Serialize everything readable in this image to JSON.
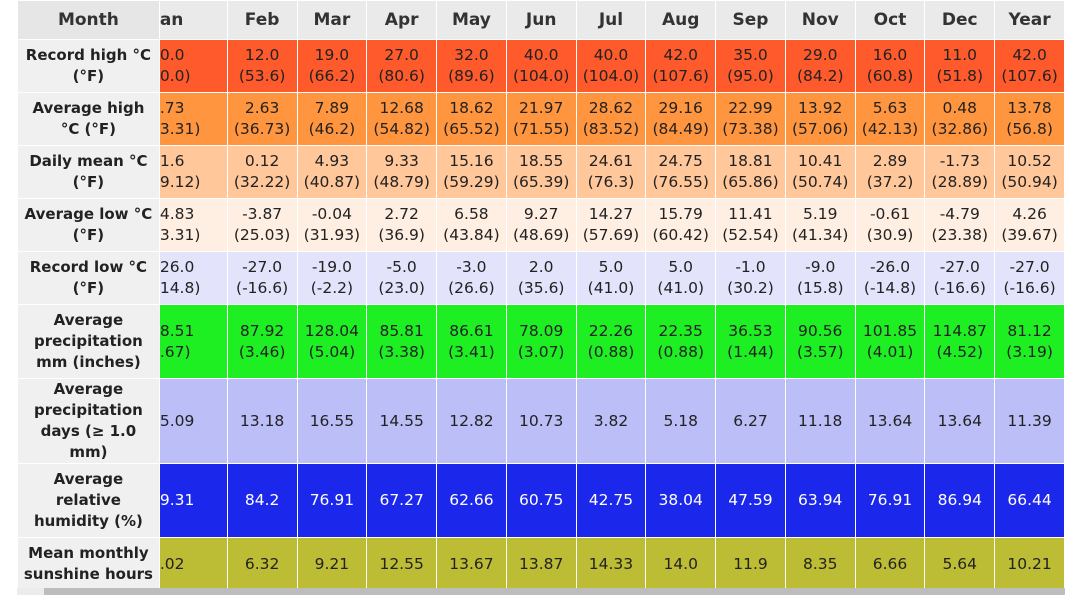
{
  "header": {
    "month_label": "Month",
    "months": [
      "an",
      "Feb",
      "Mar",
      "Apr",
      "May",
      "Jun",
      "Jul",
      "Aug",
      "Sep",
      "Nov",
      "Oct",
      "Dec",
      "Year"
    ]
  },
  "rows": [
    {
      "label": "Record high °C (°F)",
      "bg": "#ff5a2c",
      "fg": "#222",
      "cells": [
        [
          "0.0",
          "0.0)"
        ],
        [
          "12.0",
          "(53.6)"
        ],
        [
          "19.0",
          "(66.2)"
        ],
        [
          "27.0",
          "(80.6)"
        ],
        [
          "32.0",
          "(89.6)"
        ],
        [
          "40.0",
          "(104.0)"
        ],
        [
          "40.0",
          "(104.0)"
        ],
        [
          "42.0",
          "(107.6)"
        ],
        [
          "35.0",
          "(95.0)"
        ],
        [
          "29.0",
          "(84.2)"
        ],
        [
          "16.0",
          "(60.8)"
        ],
        [
          "11.0",
          "(51.8)"
        ],
        [
          "42.0",
          "(107.6)"
        ]
      ]
    },
    {
      "label": "Average high °C (°F)",
      "bg": "#ff963f",
      "fg": "#222",
      "cells": [
        [
          ".73",
          "3.31)"
        ],
        [
          "2.63",
          "(36.73)"
        ],
        [
          "7.89",
          "(46.2)"
        ],
        [
          "12.68",
          "(54.82)"
        ],
        [
          "18.62",
          "(65.52)"
        ],
        [
          "21.97",
          "(71.55)"
        ],
        [
          "28.62",
          "(83.52)"
        ],
        [
          "29.16",
          "(84.49)"
        ],
        [
          "22.99",
          "(73.38)"
        ],
        [
          "13.92",
          "(57.06)"
        ],
        [
          "5.63",
          "(42.13)"
        ],
        [
          "0.48",
          "(32.86)"
        ],
        [
          "13.78",
          "(56.8)"
        ]
      ]
    },
    {
      "label": "Daily mean °C (°F)",
      "bg": "#ffc79a",
      "fg": "#222",
      "cells": [
        [
          "1.6",
          "9.12)"
        ],
        [
          "0.12",
          "(32.22)"
        ],
        [
          "4.93",
          "(40.87)"
        ],
        [
          "9.33",
          "(48.79)"
        ],
        [
          "15.16",
          "(59.29)"
        ],
        [
          "18.55",
          "(65.39)"
        ],
        [
          "24.61",
          "(76.3)"
        ],
        [
          "24.75",
          "(76.55)"
        ],
        [
          "18.81",
          "(65.86)"
        ],
        [
          "10.41",
          "(50.74)"
        ],
        [
          "2.89",
          "(37.2)"
        ],
        [
          "-1.73",
          "(28.89)"
        ],
        [
          "10.52",
          "(50.94)"
        ]
      ]
    },
    {
      "label": "Average low °C (°F)",
      "bg": "#ffeee2",
      "fg": "#222",
      "cells": [
        [
          "4.83",
          "3.31)"
        ],
        [
          "-3.87",
          "(25.03)"
        ],
        [
          "-0.04",
          "(31.93)"
        ],
        [
          "2.72",
          "(36.9)"
        ],
        [
          "6.58",
          "(43.84)"
        ],
        [
          "9.27",
          "(48.69)"
        ],
        [
          "14.27",
          "(57.69)"
        ],
        [
          "15.79",
          "(60.42)"
        ],
        [
          "11.41",
          "(52.54)"
        ],
        [
          "5.19",
          "(41.34)"
        ],
        [
          "-0.61",
          "(30.9)"
        ],
        [
          "-4.79",
          "(23.38)"
        ],
        [
          "4.26",
          "(39.67)"
        ]
      ]
    },
    {
      "label": "Record low °C (°F)",
      "bg": "#e3e3fb",
      "fg": "#222",
      "cells": [
        [
          "26.0",
          "14.8)"
        ],
        [
          "-27.0",
          "(-16.6)"
        ],
        [
          "-19.0",
          "(-2.2)"
        ],
        [
          "-5.0",
          "(23.0)"
        ],
        [
          "-3.0",
          "(26.6)"
        ],
        [
          "2.0",
          "(35.6)"
        ],
        [
          "5.0",
          "(41.0)"
        ],
        [
          "5.0",
          "(41.0)"
        ],
        [
          "-1.0",
          "(30.2)"
        ],
        [
          "-9.0",
          "(15.8)"
        ],
        [
          "-26.0",
          "(-14.8)"
        ],
        [
          "-27.0",
          "(-16.6)"
        ],
        [
          "-27.0",
          "(-16.6)"
        ]
      ]
    },
    {
      "label": "Average precipitation mm (inches)",
      "bg": "#1eef23",
      "fg": "#222",
      "cells": [
        [
          "8.51",
          ".67)"
        ],
        [
          "87.92",
          "(3.46)"
        ],
        [
          "128.04",
          "(5.04)"
        ],
        [
          "85.81",
          "(3.38)"
        ],
        [
          "86.61",
          "(3.41)"
        ],
        [
          "78.09",
          "(3.07)"
        ],
        [
          "22.26",
          "(0.88)"
        ],
        [
          "22.35",
          "(0.88)"
        ],
        [
          "36.53",
          "(1.44)"
        ],
        [
          "90.56",
          "(3.57)"
        ],
        [
          "101.85",
          "(4.01)"
        ],
        [
          "114.87",
          "(4.52)"
        ],
        [
          "81.12",
          "(3.19)"
        ]
      ]
    },
    {
      "label": "Average precipitation days (≥ 1.0 mm)",
      "bg": "#bcbef8",
      "fg": "#222",
      "cells": [
        [
          "5.09"
        ],
        [
          "13.18"
        ],
        [
          "16.55"
        ],
        [
          "14.55"
        ],
        [
          "12.82"
        ],
        [
          "10.73"
        ],
        [
          "3.82"
        ],
        [
          "5.18"
        ],
        [
          "6.27"
        ],
        [
          "11.18"
        ],
        [
          "13.64"
        ],
        [
          "13.64"
        ],
        [
          "11.39"
        ]
      ]
    },
    {
      "label": "Average relative humidity (%)",
      "bg": "#1b27ea",
      "fg": "#ffffff",
      "cells": [
        [
          "9.31"
        ],
        [
          "84.2"
        ],
        [
          "76.91"
        ],
        [
          "67.27"
        ],
        [
          "62.66"
        ],
        [
          "60.75"
        ],
        [
          "42.75"
        ],
        [
          "38.04"
        ],
        [
          "47.59"
        ],
        [
          "63.94"
        ],
        [
          "76.91"
        ],
        [
          "86.94"
        ],
        [
          "66.44"
        ]
      ]
    },
    {
      "label": "Mean monthly sunshine hours",
      "bg": "#bcbc35",
      "fg": "#222",
      "cells": [
        [
          ".02"
        ],
        [
          "6.32"
        ],
        [
          "9.21"
        ],
        [
          "12.55"
        ],
        [
          "13.67"
        ],
        [
          "13.87"
        ],
        [
          "14.33"
        ],
        [
          "14.0"
        ],
        [
          "11.9"
        ],
        [
          "8.35"
        ],
        [
          "6.66"
        ],
        [
          "5.64"
        ],
        [
          "10.21"
        ]
      ]
    }
  ]
}
